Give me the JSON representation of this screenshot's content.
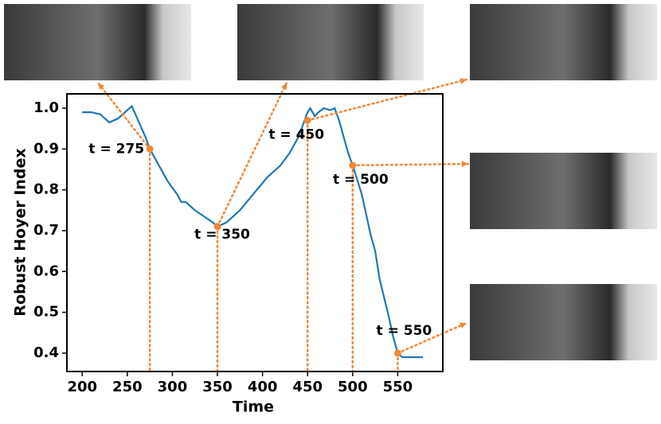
{
  "chart_data": {
    "type": "line",
    "xlabel": "Time",
    "ylabel": "Robust Hoyer Index",
    "x": [
      200,
      210,
      220,
      230,
      240,
      250,
      255,
      260,
      270,
      275,
      285,
      295,
      305,
      310,
      315,
      325,
      335,
      345,
      350,
      360,
      375,
      390,
      405,
      420,
      430,
      440,
      445,
      450,
      453,
      458,
      462,
      468,
      475,
      480,
      485,
      490,
      495,
      500,
      510,
      520,
      525,
      530,
      540,
      545,
      550,
      555,
      565,
      578
    ],
    "series": [
      {
        "name": "Robust Hoyer Index",
        "color": "#1f77b4",
        "values": [
          0.99,
          0.99,
          0.985,
          0.965,
          0.975,
          0.995,
          1.005,
          0.98,
          0.93,
          0.9,
          0.86,
          0.82,
          0.79,
          0.77,
          0.77,
          0.75,
          0.735,
          0.72,
          0.71,
          0.72,
          0.75,
          0.79,
          0.83,
          0.86,
          0.89,
          0.93,
          0.96,
          0.99,
          1.0,
          0.98,
          0.99,
          1.0,
          0.995,
          1.0,
          0.97,
          0.93,
          0.89,
          0.86,
          0.79,
          0.69,
          0.65,
          0.58,
          0.49,
          0.44,
          0.4,
          0.39,
          0.39,
          0.39
        ]
      }
    ],
    "annotations": [
      {
        "label": "t = 275",
        "x": 275,
        "y": 0.9
      },
      {
        "label": "t = 350",
        "x": 350,
        "y": 0.71
      },
      {
        "label": "t = 450",
        "x": 450,
        "y": 0.97
      },
      {
        "label": "t = 500",
        "x": 500,
        "y": 0.86
      },
      {
        "label": "t = 550",
        "x": 550,
        "y": 0.4
      }
    ],
    "annotation_color": "#f0883a",
    "xlim": [
      183,
      600
    ],
    "ylim": [
      0.355,
      1.035
    ],
    "xticks": [
      200,
      250,
      300,
      350,
      400,
      450,
      500,
      550
    ],
    "yticks": [
      {
        "value": 0.4,
        "label": "0.4"
      },
      {
        "value": 0.5,
        "label": "0.5"
      },
      {
        "value": 0.6,
        "label": "0.6"
      },
      {
        "value": 0.7,
        "label": "0.7"
      },
      {
        "value": 0.8,
        "label": "0.8"
      },
      {
        "value": 0.9,
        "label": "0.9"
      },
      {
        "value": 1.0,
        "label": "1.0"
      }
    ]
  }
}
